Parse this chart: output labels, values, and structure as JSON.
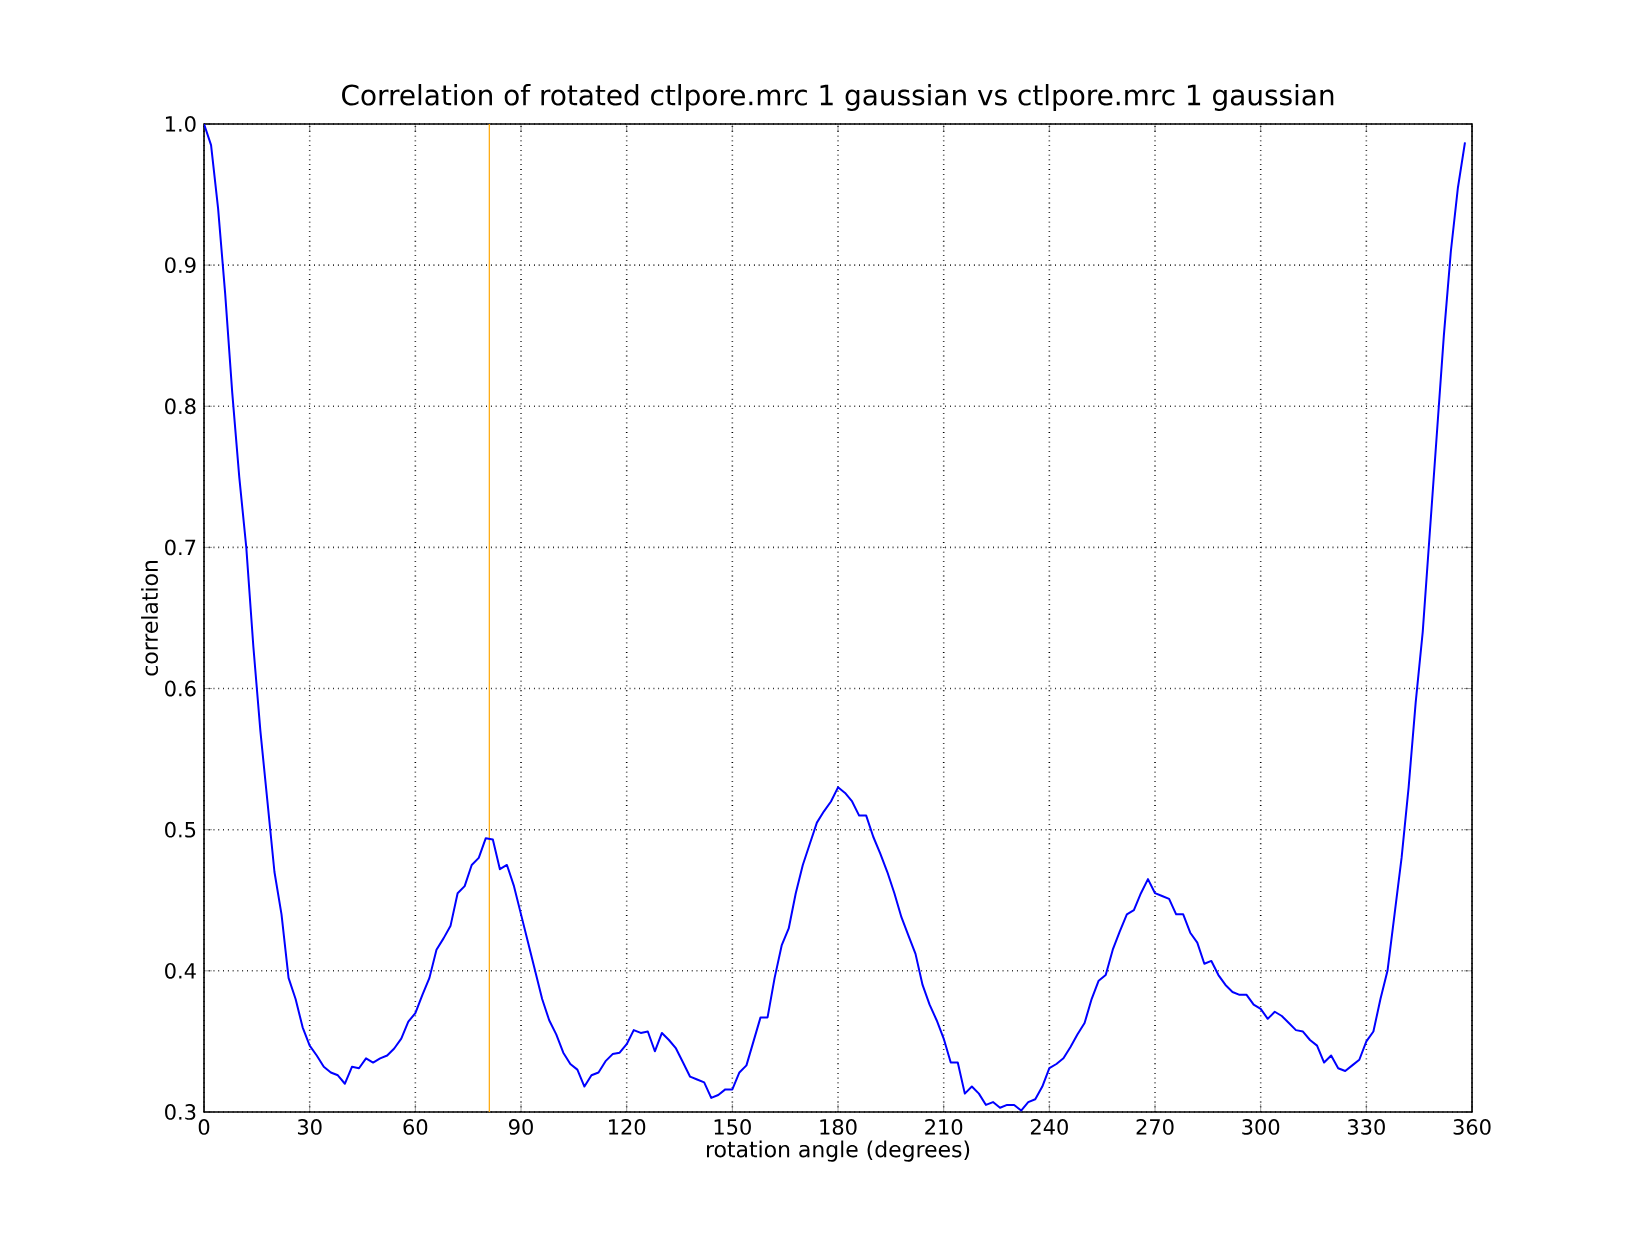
{
  "chart_data": {
    "type": "line",
    "title": "Correlation of rotated ctlpore.mrc 1 gaussian vs ctlpore.mrc 1 gaussian",
    "xlabel": "rotation angle (degrees)",
    "ylabel": "correlation",
    "x": [
      0,
      2,
      4,
      6,
      8,
      10,
      12,
      14,
      16,
      18,
      20,
      22,
      24,
      26,
      28,
      30,
      32,
      34,
      36,
      38,
      40,
      42,
      44,
      46,
      48,
      50,
      52,
      54,
      56,
      58,
      60,
      62,
      64,
      66,
      68,
      70,
      72,
      74,
      76,
      78,
      80,
      82,
      84,
      86,
      88,
      90,
      92,
      94,
      96,
      98,
      100,
      102,
      104,
      106,
      108,
      110,
      112,
      114,
      116,
      118,
      120,
      122,
      124,
      126,
      128,
      130,
      132,
      134,
      136,
      138,
      140,
      142,
      144,
      146,
      148,
      150,
      152,
      154,
      156,
      158,
      160,
      162,
      164,
      166,
      168,
      170,
      172,
      174,
      176,
      178,
      180,
      182,
      184,
      186,
      188,
      190,
      192,
      194,
      196,
      198,
      200,
      202,
      204,
      206,
      208,
      210,
      212,
      214,
      216,
      218,
      220,
      222,
      224,
      226,
      228,
      230,
      232,
      234,
      236,
      238,
      240,
      242,
      244,
      246,
      248,
      250,
      252,
      254,
      256,
      258,
      260,
      262,
      264,
      266,
      268,
      270,
      272,
      274,
      276,
      278,
      280,
      282,
      284,
      286,
      288,
      290,
      292,
      294,
      296,
      298,
      300,
      302,
      304,
      306,
      308,
      310,
      312,
      314,
      316,
      318,
      320,
      322,
      324,
      326,
      328,
      330,
      332,
      334,
      336,
      338,
      340,
      342,
      344,
      346,
      348,
      350,
      352,
      354,
      356,
      358
    ],
    "series": [
      {
        "color": "#0000ff",
        "values": [
          1.0,
          0.985,
          0.94,
          0.88,
          0.81,
          0.75,
          0.7,
          0.63,
          0.57,
          0.52,
          0.47,
          0.44,
          0.395,
          0.38,
          0.36,
          0.347,
          0.34,
          0.332,
          0.328,
          0.326,
          0.32,
          0.332,
          0.331,
          0.338,
          0.335,
          0.338,
          0.34,
          0.345,
          0.352,
          0.364,
          0.37,
          0.383,
          0.395,
          0.415,
          0.423,
          0.432,
          0.455,
          0.46,
          0.475,
          0.48,
          0.494,
          0.493,
          0.472,
          0.475,
          0.46,
          0.44,
          0.42,
          0.4,
          0.38,
          0.365,
          0.355,
          0.342,
          0.334,
          0.33,
          0.318,
          0.326,
          0.328,
          0.336,
          0.341,
          0.342,
          0.348,
          0.358,
          0.356,
          0.357,
          0.343,
          0.356,
          0.351,
          0.345,
          0.335,
          0.325,
          0.323,
          0.321,
          0.31,
          0.312,
          0.316,
          0.316,
          0.328,
          0.333,
          0.35,
          0.367,
          0.367,
          0.395,
          0.418,
          0.43,
          0.455,
          0.475,
          0.49,
          0.505,
          0.513,
          0.52,
          0.53,
          0.526,
          0.52,
          0.51,
          0.51,
          0.495,
          0.483,
          0.47,
          0.455,
          0.438,
          0.425,
          0.412,
          0.39,
          0.376,
          0.365,
          0.352,
          0.335,
          0.335,
          0.313,
          0.318,
          0.313,
          0.305,
          0.307,
          0.303,
          0.305,
          0.305,
          0.301,
          0.307,
          0.309,
          0.318,
          0.331,
          0.334,
          0.338,
          0.346,
          0.355,
          0.363,
          0.38,
          0.393,
          0.397,
          0.415,
          0.428,
          0.44,
          0.443,
          0.455,
          0.465,
          0.455,
          0.453,
          0.451,
          0.44,
          0.44,
          0.427,
          0.42,
          0.405,
          0.407,
          0.397,
          0.39,
          0.385,
          0.383,
          0.383,
          0.376,
          0.373,
          0.366,
          0.371,
          0.368,
          0.363,
          0.358,
          0.357,
          0.351,
          0.347,
          0.335,
          0.34,
          0.331,
          0.329,
          0.333,
          0.337,
          0.35,
          0.357,
          0.38,
          0.4,
          0.44,
          0.48,
          0.53,
          0.59,
          0.64,
          0.71,
          0.78,
          0.85,
          0.91,
          0.955,
          0.987
        ]
      }
    ],
    "xlim": [
      0,
      360
    ],
    "xticks": [
      0,
      30,
      60,
      90,
      120,
      150,
      180,
      210,
      240,
      270,
      300,
      330,
      360
    ],
    "ylim": [
      0.3,
      1.0
    ],
    "yticks": [
      {
        "value": 0.3,
        "label": "0.3"
      },
      {
        "value": 0.4,
        "label": "0.4"
      },
      {
        "value": 0.5,
        "label": "0.5"
      },
      {
        "value": 0.6,
        "label": "0.6"
      },
      {
        "value": 0.7,
        "label": "0.7"
      },
      {
        "value": 0.8,
        "label": "0.8"
      },
      {
        "value": 0.9,
        "label": "0.9"
      },
      {
        "value": 1.0,
        "label": "1.0"
      }
    ],
    "grid": true,
    "line_style": "solid",
    "marker": "none",
    "ref_lines": [
      {
        "axis": "x",
        "value": 81,
        "color": "#ffa500"
      }
    ]
  }
}
